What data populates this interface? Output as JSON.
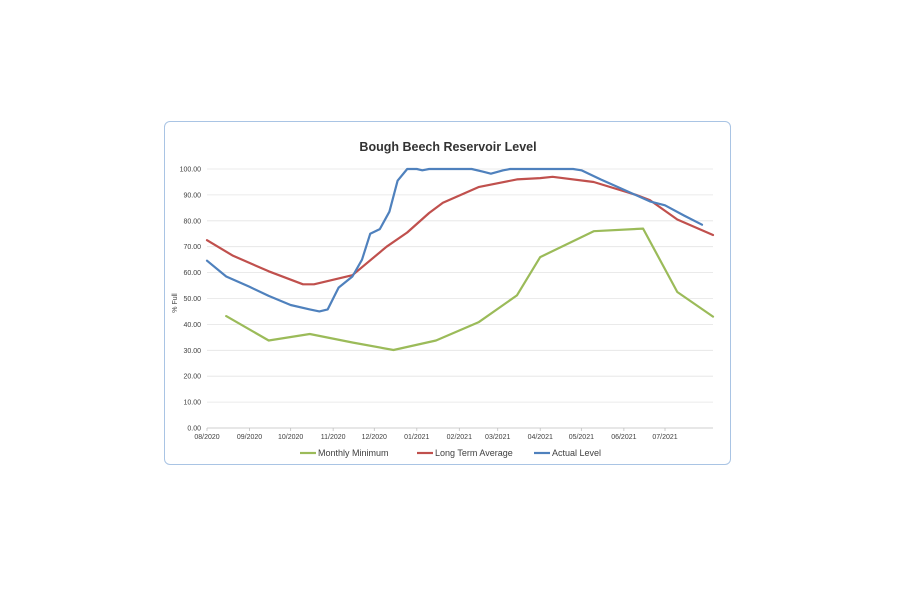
{
  "chart_data": {
    "type": "line",
    "title": "Bough Beech Reservoir Level",
    "xlabel": "",
    "ylabel": "% Full",
    "ylim": [
      0,
      100
    ],
    "xlim": [
      "2020-08-01",
      "2021-08-05"
    ],
    "y_ticks": [
      "0.00",
      "10.00",
      "20.00",
      "30.00",
      "40.00",
      "50.00",
      "60.00",
      "70.00",
      "80.00",
      "90.00",
      "100.00"
    ],
    "x_ticks": [
      {
        "date": "2020-08-01",
        "label": "08/2020"
      },
      {
        "date": "2020-09-01",
        "label": "09/2020"
      },
      {
        "date": "2020-10-01",
        "label": "10/2020"
      },
      {
        "date": "2020-11-01",
        "label": "11/2020"
      },
      {
        "date": "2020-12-01",
        "label": "12/2020"
      },
      {
        "date": "2021-01-01",
        "label": "01/2021"
      },
      {
        "date": "2021-02-01",
        "label": "02/2021"
      },
      {
        "date": "2021-03-01",
        "label": "03/2021"
      },
      {
        "date": "2021-04-01",
        "label": "04/2021"
      },
      {
        "date": "2021-05-01",
        "label": "05/2021"
      },
      {
        "date": "2021-06-01",
        "label": "06/2021"
      },
      {
        "date": "2021-07-01",
        "label": "07/2021"
      }
    ],
    "grid": true,
    "legend_position": "bottom",
    "series": [
      {
        "name": "Monthly Minimum",
        "color": "#9bbb59",
        "points": [
          [
            "2020-08-15",
            43.2
          ],
          [
            "2020-09-15",
            33.8
          ],
          [
            "2020-10-15",
            36.3
          ],
          [
            "2020-11-15",
            33.0
          ],
          [
            "2020-12-15",
            30.1
          ],
          [
            "2021-01-15",
            33.8
          ],
          [
            "2021-02-15",
            40.8
          ],
          [
            "2021-03-15",
            51.2
          ],
          [
            "2021-04-01",
            66.0
          ],
          [
            "2021-05-10",
            76.0
          ],
          [
            "2021-06-15",
            77.0
          ],
          [
            "2021-07-10",
            52.5
          ],
          [
            "2021-08-05",
            43.0
          ]
        ]
      },
      {
        "name": "Long Term Average",
        "color": "#c0504d",
        "points": [
          [
            "2020-08-01",
            72.5
          ],
          [
            "2020-08-20",
            66.5
          ],
          [
            "2020-09-15",
            60.5
          ],
          [
            "2020-10-10",
            55.5
          ],
          [
            "2020-10-18",
            55.5
          ],
          [
            "2020-11-15",
            59.0
          ],
          [
            "2020-12-10",
            70.0
          ],
          [
            "2020-12-25",
            75.5
          ],
          [
            "2021-01-10",
            83.0
          ],
          [
            "2021-01-20",
            87.0
          ],
          [
            "2021-02-15",
            93.0
          ],
          [
            "2021-03-15",
            96.0
          ],
          [
            "2021-04-01",
            96.5
          ],
          [
            "2021-04-10",
            97.0
          ],
          [
            "2021-05-10",
            95.0
          ],
          [
            "2021-06-10",
            90.0
          ],
          [
            "2021-06-20",
            88.0
          ],
          [
            "2021-07-10",
            80.5
          ],
          [
            "2021-08-05",
            74.5
          ]
        ]
      },
      {
        "name": "Actual Level",
        "color": "#4f81bd",
        "points": [
          [
            "2020-08-01",
            64.6
          ],
          [
            "2020-08-15",
            58.5
          ],
          [
            "2020-09-01",
            54.5
          ],
          [
            "2020-09-15",
            51.0
          ],
          [
            "2020-10-01",
            47.5
          ],
          [
            "2020-10-15",
            45.8
          ],
          [
            "2020-10-22",
            45.0
          ],
          [
            "2020-10-28",
            45.8
          ],
          [
            "2020-11-05",
            54.2
          ],
          [
            "2020-11-15",
            58.5
          ],
          [
            "2020-11-22",
            65.0
          ],
          [
            "2020-11-28",
            75.0
          ],
          [
            "2020-12-05",
            76.8
          ],
          [
            "2020-12-12",
            83.5
          ],
          [
            "2020-12-18",
            95.5
          ],
          [
            "2020-12-25",
            100.0
          ],
          [
            "2021-01-01",
            100.0
          ],
          [
            "2021-01-05",
            99.5
          ],
          [
            "2021-01-10",
            100.0
          ],
          [
            "2021-02-10",
            100.0
          ],
          [
            "2021-02-18",
            99.0
          ],
          [
            "2021-02-24",
            98.2
          ],
          [
            "2021-03-05",
            99.5
          ],
          [
            "2021-03-10",
            100.0
          ],
          [
            "2021-04-25",
            100.0
          ],
          [
            "2021-05-01",
            99.5
          ],
          [
            "2021-05-15",
            96.0
          ],
          [
            "2021-06-01",
            92.0
          ],
          [
            "2021-06-20",
            87.5
          ],
          [
            "2021-07-01",
            86.0
          ],
          [
            "2021-07-15",
            82.0
          ],
          [
            "2021-07-28",
            78.5
          ]
        ]
      }
    ]
  }
}
